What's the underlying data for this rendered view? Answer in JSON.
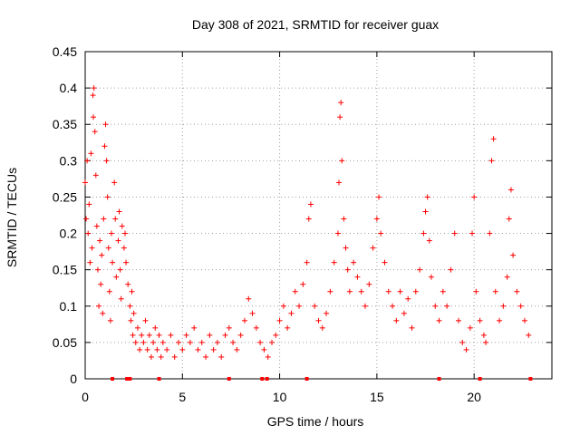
{
  "chart_data": {
    "type": "scatter",
    "title": "Day 308 of 2021, SRMTID for receiver guax",
    "xlabel": "GPS time / hours",
    "ylabel": "SRMTID / TECUs",
    "xlim": [
      0,
      24
    ],
    "ylim": [
      0,
      0.45
    ],
    "xticks": [
      0,
      5,
      10,
      15,
      20
    ],
    "xtick_labels": [
      "0",
      "5",
      "10",
      "15",
      "20"
    ],
    "yticks": [
      0,
      0.05,
      0.1,
      0.15,
      0.2,
      0.25,
      0.3,
      0.35,
      0.4,
      0.45
    ],
    "ytick_labels": [
      "0",
      "0.05",
      "0.1",
      "0.15",
      "0.2",
      "0.25",
      "0.3",
      "0.35",
      "0.4",
      "0.45"
    ],
    "grid": true,
    "marker": "+",
    "color": "#ff0000",
    "series": [
      {
        "name": "SRMTID",
        "points": [
          [
            0.0,
            0.27
          ],
          [
            0.05,
            0.22
          ],
          [
            0.1,
            0.3
          ],
          [
            0.15,
            0.2
          ],
          [
            0.2,
            0.24
          ],
          [
            0.25,
            0.16
          ],
          [
            0.3,
            0.31
          ],
          [
            0.35,
            0.18
          ],
          [
            0.4,
            0.39
          ],
          [
            0.42,
            0.36
          ],
          [
            0.45,
            0.4
          ],
          [
            0.5,
            0.34
          ],
          [
            0.55,
            0.28
          ],
          [
            0.6,
            0.21
          ],
          [
            0.65,
            0.15
          ],
          [
            0.7,
            0.1
          ],
          [
            0.75,
            0.19
          ],
          [
            0.8,
            0.13
          ],
          [
            0.85,
            0.17
          ],
          [
            0.9,
            0.09
          ],
          [
            0.95,
            0.22
          ],
          [
            1.0,
            0.32
          ],
          [
            1.05,
            0.35
          ],
          [
            1.1,
            0.3
          ],
          [
            1.15,
            0.25
          ],
          [
            1.2,
            0.18
          ],
          [
            1.25,
            0.12
          ],
          [
            1.3,
            0.08
          ],
          [
            1.35,
            0.2
          ],
          [
            1.4,
            0.16
          ],
          [
            1.5,
            0.27
          ],
          [
            1.55,
            0.22
          ],
          [
            1.6,
            0.14
          ],
          [
            1.7,
            0.19
          ],
          [
            1.75,
            0.23
          ],
          [
            1.8,
            0.15
          ],
          [
            1.85,
            0.11
          ],
          [
            1.9,
            0.21
          ],
          [
            2.0,
            0.18
          ],
          [
            2.05,
            0.2
          ],
          [
            2.1,
            0.16
          ],
          [
            2.2,
            0.13
          ],
          [
            2.3,
            0.1
          ],
          [
            2.35,
            0.08
          ],
          [
            2.4,
            0.12
          ],
          [
            2.45,
            0.06
          ],
          [
            2.5,
            0.09
          ],
          [
            2.6,
            0.05
          ],
          [
            2.7,
            0.07
          ],
          [
            2.8,
            0.04
          ],
          [
            2.9,
            0.06
          ],
          [
            3.0,
            0.05
          ],
          [
            3.1,
            0.08
          ],
          [
            3.2,
            0.04
          ],
          [
            3.3,
            0.06
          ],
          [
            3.4,
            0.03
          ],
          [
            3.5,
            0.05
          ],
          [
            3.6,
            0.07
          ],
          [
            3.7,
            0.04
          ],
          [
            3.8,
            0.06
          ],
          [
            3.9,
            0.03
          ],
          [
            4.0,
            0.05
          ],
          [
            4.2,
            0.04
          ],
          [
            4.4,
            0.06
          ],
          [
            4.6,
            0.03
          ],
          [
            4.8,
            0.05
          ],
          [
            5.0,
            0.04
          ],
          [
            5.2,
            0.06
          ],
          [
            5.4,
            0.05
          ],
          [
            5.6,
            0.07
          ],
          [
            5.8,
            0.04
          ],
          [
            6.0,
            0.05
          ],
          [
            6.2,
            0.03
          ],
          [
            6.4,
            0.06
          ],
          [
            6.6,
            0.04
          ],
          [
            6.8,
            0.05
          ],
          [
            7.0,
            0.03
          ],
          [
            7.2,
            0.06
          ],
          [
            7.4,
            0.07
          ],
          [
            7.6,
            0.05
          ],
          [
            7.8,
            0.04
          ],
          [
            8.0,
            0.06
          ],
          [
            8.2,
            0.08
          ],
          [
            8.4,
            0.11
          ],
          [
            8.6,
            0.09
          ],
          [
            8.8,
            0.07
          ],
          [
            9.0,
            0.05
          ],
          [
            9.2,
            0.04
          ],
          [
            9.4,
            0.03
          ],
          [
            9.6,
            0.05
          ],
          [
            9.8,
            0.06
          ],
          [
            10.0,
            0.08
          ],
          [
            10.2,
            0.1
          ],
          [
            10.4,
            0.07
          ],
          [
            10.6,
            0.09
          ],
          [
            10.8,
            0.12
          ],
          [
            11.0,
            0.1
          ],
          [
            11.2,
            0.13
          ],
          [
            11.4,
            0.16
          ],
          [
            11.5,
            0.22
          ],
          [
            11.6,
            0.24
          ],
          [
            11.8,
            0.1
          ],
          [
            12.0,
            0.08
          ],
          [
            12.2,
            0.07
          ],
          [
            12.4,
            0.09
          ],
          [
            12.6,
            0.12
          ],
          [
            12.8,
            0.16
          ],
          [
            13.0,
            0.2
          ],
          [
            13.05,
            0.27
          ],
          [
            13.1,
            0.36
          ],
          [
            13.15,
            0.38
          ],
          [
            13.2,
            0.3
          ],
          [
            13.3,
            0.22
          ],
          [
            13.4,
            0.18
          ],
          [
            13.5,
            0.15
          ],
          [
            13.6,
            0.12
          ],
          [
            13.8,
            0.16
          ],
          [
            14.0,
            0.14
          ],
          [
            14.2,
            0.12
          ],
          [
            14.4,
            0.1
          ],
          [
            14.6,
            0.13
          ],
          [
            14.8,
            0.18
          ],
          [
            15.0,
            0.22
          ],
          [
            15.1,
            0.25
          ],
          [
            15.2,
            0.2
          ],
          [
            15.4,
            0.16
          ],
          [
            15.6,
            0.12
          ],
          [
            15.8,
            0.1
          ],
          [
            16.0,
            0.08
          ],
          [
            16.2,
            0.12
          ],
          [
            16.4,
            0.09
          ],
          [
            16.6,
            0.11
          ],
          [
            16.8,
            0.07
          ],
          [
            17.0,
            0.12
          ],
          [
            17.2,
            0.15
          ],
          [
            17.4,
            0.2
          ],
          [
            17.5,
            0.23
          ],
          [
            17.6,
            0.25
          ],
          [
            17.7,
            0.19
          ],
          [
            17.8,
            0.14
          ],
          [
            18.0,
            0.1
          ],
          [
            18.2,
            0.08
          ],
          [
            18.4,
            0.12
          ],
          [
            18.6,
            0.1
          ],
          [
            18.8,
            0.15
          ],
          [
            19.0,
            0.2
          ],
          [
            19.2,
            0.08
          ],
          [
            19.4,
            0.05
          ],
          [
            19.6,
            0.04
          ],
          [
            19.8,
            0.07
          ],
          [
            19.9,
            0.2
          ],
          [
            20.0,
            0.25
          ],
          [
            20.1,
            0.12
          ],
          [
            20.3,
            0.08
          ],
          [
            20.5,
            0.06
          ],
          [
            20.6,
            0.05
          ],
          [
            20.8,
            0.2
          ],
          [
            20.9,
            0.3
          ],
          [
            21.0,
            0.33
          ],
          [
            21.1,
            0.12
          ],
          [
            21.3,
            0.08
          ],
          [
            21.5,
            0.1
          ],
          [
            21.7,
            0.14
          ],
          [
            21.8,
            0.22
          ],
          [
            21.9,
            0.26
          ],
          [
            22.0,
            0.17
          ],
          [
            22.2,
            0.12
          ],
          [
            22.4,
            0.1
          ],
          [
            22.6,
            0.08
          ],
          [
            22.8,
            0.06
          ]
        ]
      }
    ],
    "axis_markers_x": [
      1.4,
      2.15,
      2.3,
      3.8,
      7.4,
      9.1,
      9.35,
      11.4,
      18.2,
      20.3,
      22.9
    ]
  }
}
